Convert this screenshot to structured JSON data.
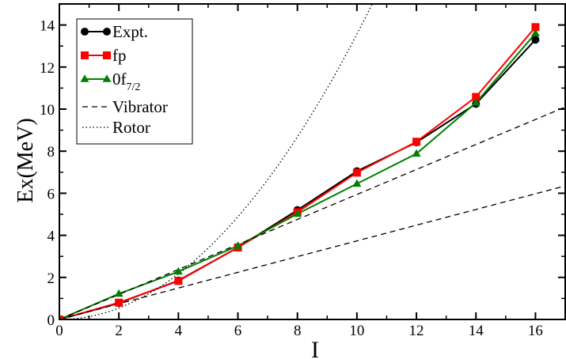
{
  "chart_data": {
    "type": "line",
    "xlabel": "I",
    "ylabel": "Ex(MeV)",
    "xlim": [
      0,
      17
    ],
    "ylim": [
      0,
      15
    ],
    "xticks": [
      0,
      2,
      4,
      6,
      8,
      10,
      12,
      14,
      16
    ],
    "yticks": [
      0,
      2,
      4,
      6,
      8,
      10,
      12,
      14
    ],
    "grid": false,
    "legend_position": "top-left",
    "series": [
      {
        "name": "Expt.",
        "color": "#000000",
        "marker": "circle",
        "style": "solid",
        "x": [
          0,
          2,
          4,
          6,
          8,
          10,
          12,
          14,
          16
        ],
        "y": [
          0,
          0.78,
          1.85,
          3.42,
          5.2,
          7.05,
          8.42,
          10.25,
          13.3
        ]
      },
      {
        "name": "fp",
        "color": "#ff0000",
        "marker": "square",
        "style": "solid",
        "x": [
          0,
          2,
          4,
          6,
          8,
          10,
          12,
          14,
          16
        ],
        "y": [
          0,
          0.8,
          1.83,
          3.42,
          5.1,
          6.98,
          8.45,
          10.58,
          13.9
        ]
      },
      {
        "name": "0f",
        "name_subscript": "7/2",
        "color": "#008000",
        "marker": "triangle",
        "style": "solid",
        "x": [
          0,
          2,
          4,
          6,
          8,
          10,
          12,
          14,
          16
        ],
        "y": [
          0,
          1.22,
          2.28,
          3.5,
          5.02,
          6.45,
          7.88,
          10.3,
          13.6
        ]
      },
      {
        "name": "Vibrator",
        "color": "#000000",
        "style": "dashed",
        "x": [
          0,
          17
        ],
        "y": [
          0,
          10.1
        ]
      },
      {
        "name": "",
        "color": "#000000",
        "style": "dashed",
        "x": [
          0,
          17
        ],
        "y": [
          0,
          6.35
        ]
      },
      {
        "name": "Rotor",
        "color": "#000000",
        "style": "dotted",
        "x": [
          0,
          2,
          4,
          6,
          8,
          9,
          10,
          10.5
        ],
        "y": [
          0,
          0.6,
          2.3,
          4.8,
          8.0,
          10.0,
          12.6,
          15
        ]
      }
    ]
  }
}
